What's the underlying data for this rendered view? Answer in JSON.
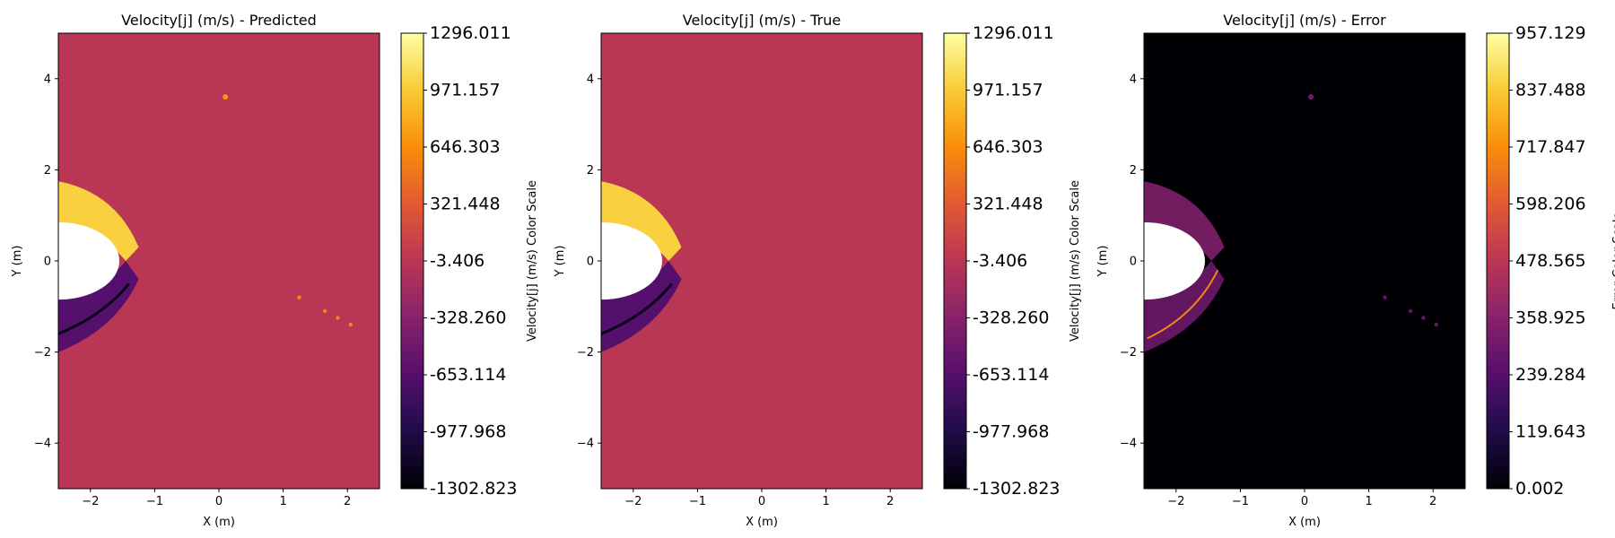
{
  "colormap": [
    "#000004",
    "#1f0c48",
    "#550f6d",
    "#88226a",
    "#ba3655",
    "#e35933",
    "#f98e09",
    "#f9cb35",
    "#fcffa4"
  ],
  "chart_data": [
    {
      "type": "heatmap",
      "title": "Velocity[j] (m/s) - Predicted",
      "xlabel": "X (m)",
      "ylabel": "Y (m)",
      "xlim": [
        -2.5,
        2.5
      ],
      "ylim": [
        -5,
        5
      ],
      "xticks": [
        -2,
        -1,
        0,
        1,
        2
      ],
      "xtick_labels": [
        "−2",
        "−1",
        "0",
        "1",
        "2"
      ],
      "yticks": [
        -4,
        -2,
        0,
        2,
        4
      ],
      "ytick_labels": [
        "−4",
        "−2",
        "0",
        "2",
        "4"
      ],
      "background_value": -3.406,
      "colorbar": {
        "label": "Velocity[j] (m/s) Color Scale",
        "min": -1302.823,
        "max": 1296.011,
        "tick_labels": [
          "1296.011",
          "971.157",
          "646.303",
          "321.448",
          "-3.406",
          "-328.260",
          "-653.114",
          "-977.968",
          "-1302.823"
        ]
      }
    },
    {
      "type": "heatmap",
      "title": "Velocity[j] (m/s) - True",
      "xlabel": "X (m)",
      "ylabel": "Y (m)",
      "xlim": [
        -2.5,
        2.5
      ],
      "ylim": [
        -5,
        5
      ],
      "xticks": [
        -2,
        -1,
        0,
        1,
        2
      ],
      "xtick_labels": [
        "−2",
        "−1",
        "0",
        "1",
        "2"
      ],
      "yticks": [
        -4,
        -2,
        0,
        2,
        4
      ],
      "ytick_labels": [
        "−4",
        "−2",
        "0",
        "2",
        "4"
      ],
      "background_value": -3.406,
      "colorbar": {
        "label": "Velocity[j] (m/s) Color Scale",
        "min": -1302.823,
        "max": 1296.011,
        "tick_labels": [
          "1296.011",
          "971.157",
          "646.303",
          "321.448",
          "-3.406",
          "-328.260",
          "-653.114",
          "-977.968",
          "-1302.823"
        ]
      }
    },
    {
      "type": "heatmap",
      "title": "Velocity[j] (m/s) - Error",
      "xlabel": "X (m)",
      "ylabel": "Y (m)",
      "xlim": [
        -2.5,
        2.5
      ],
      "ylim": [
        -5,
        5
      ],
      "xticks": [
        -2,
        -1,
        0,
        1,
        2
      ],
      "xtick_labels": [
        "−2",
        "−1",
        "0",
        "1",
        "2"
      ],
      "yticks": [
        -4,
        -2,
        0,
        2,
        4
      ],
      "ytick_labels": [
        "−4",
        "−2",
        "0",
        "2",
        "4"
      ],
      "background_value": 0.002,
      "colorbar": {
        "label": "Error Color Scale",
        "min": 0.002,
        "max": 957.129,
        "tick_labels": [
          "957.129",
          "837.488",
          "717.847",
          "598.206",
          "478.565",
          "358.925",
          "239.284",
          "119.643",
          "0.002"
        ]
      }
    }
  ]
}
